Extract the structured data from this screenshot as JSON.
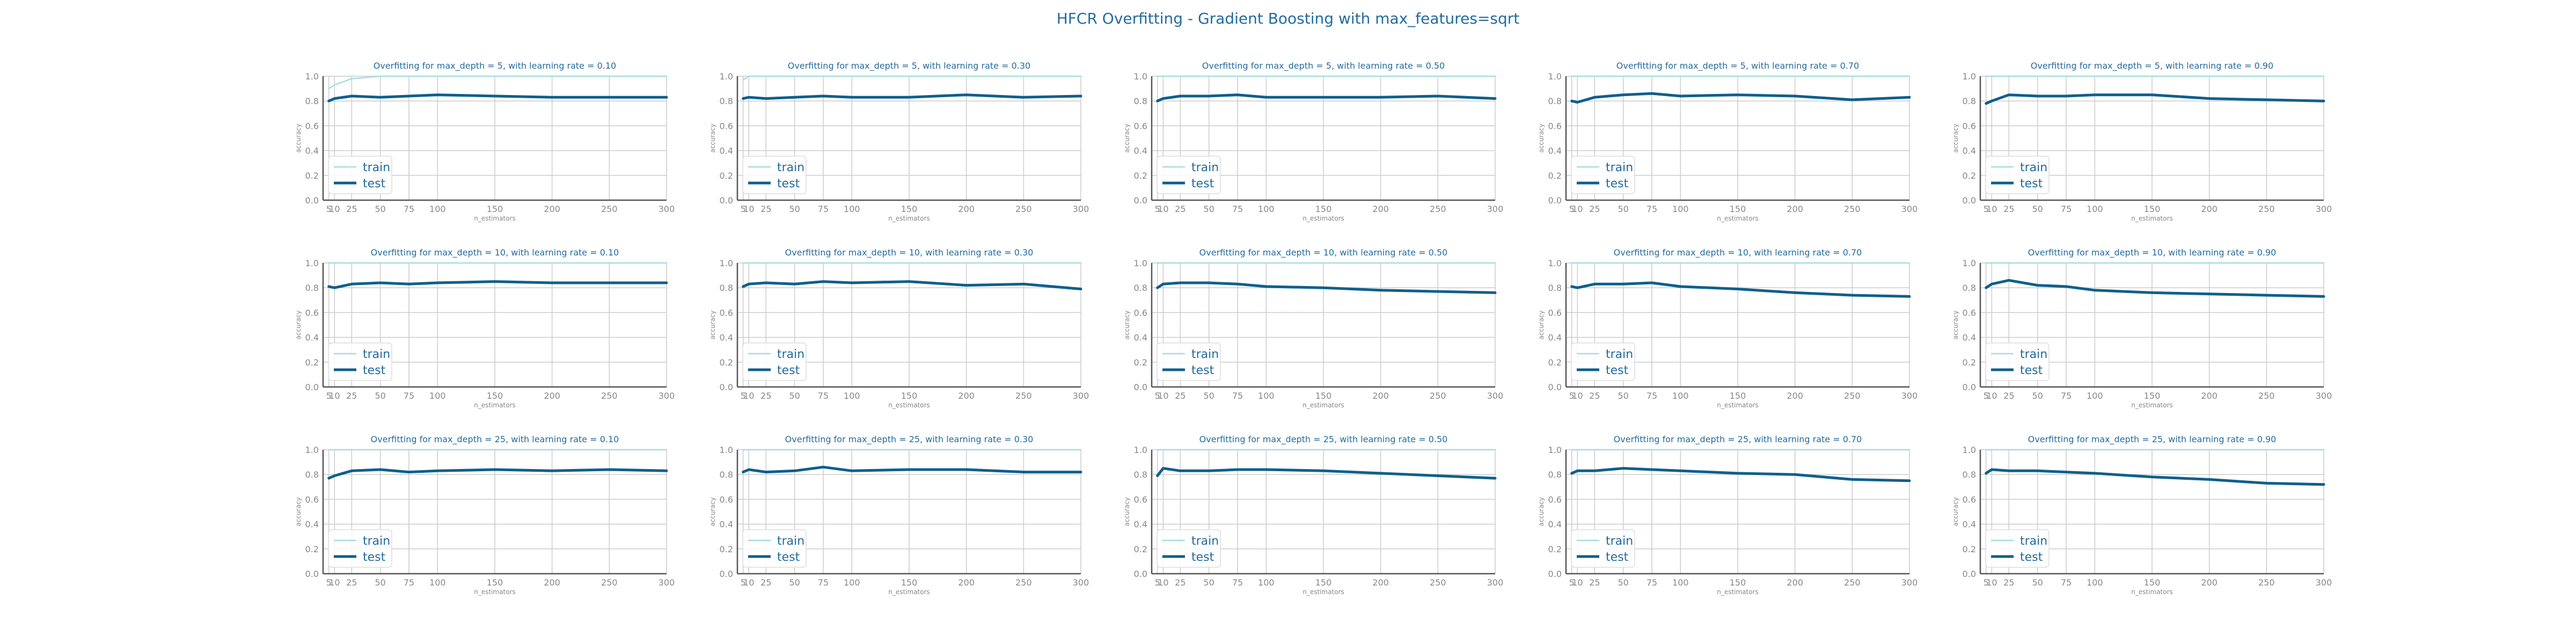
{
  "figure": {
    "title": "HFCR Overfitting - Gradient Boosting with max_features=sqrt"
  },
  "colors": {
    "train": "#a6dde0",
    "test": "#0e5f8c",
    "grid": "#cccccc",
    "axis": "#555555",
    "text": "#236b9e",
    "tick": "#888888"
  },
  "chart_data": [
    {
      "type": "line",
      "title": "Overfitting for max_depth = 5, with learning rate = 0.10",
      "xlabel": "n_estimators",
      "ylabel": "accuracy",
      "x": [
        5,
        10,
        25,
        50,
        75,
        100,
        150,
        200,
        250,
        300
      ],
      "xticks": [
        5,
        10,
        25,
        50,
        75,
        100,
        150,
        200,
        250,
        300
      ],
      "yticks": [
        0.0,
        0.2,
        0.4,
        0.6,
        0.8,
        1.0
      ],
      "xlim": [
        0,
        300
      ],
      "ylim": [
        0,
        1
      ],
      "legend": "lower-left",
      "series": [
        {
          "name": "train",
          "values": [
            0.9,
            0.93,
            0.98,
            1.0,
            1.0,
            1.0,
            1.0,
            1.0,
            1.0,
            1.0
          ]
        },
        {
          "name": "test",
          "values": [
            0.8,
            0.82,
            0.84,
            0.83,
            0.84,
            0.85,
            0.84,
            0.83,
            0.83,
            0.83
          ]
        }
      ]
    },
    {
      "type": "line",
      "title": "Overfitting for max_depth = 5, with learning rate = 0.30",
      "xlabel": "n_estimators",
      "ylabel": "accuracy",
      "x": [
        5,
        10,
        25,
        50,
        75,
        100,
        150,
        200,
        250,
        300
      ],
      "xticks": [
        5,
        10,
        25,
        50,
        75,
        100,
        150,
        200,
        250,
        300
      ],
      "yticks": [
        0.0,
        0.2,
        0.4,
        0.6,
        0.8,
        1.0
      ],
      "xlim": [
        0,
        300
      ],
      "ylim": [
        0,
        1
      ],
      "legend": "lower-left",
      "series": [
        {
          "name": "train",
          "values": [
            0.97,
            1.0,
            1.0,
            1.0,
            1.0,
            1.0,
            1.0,
            1.0,
            1.0,
            1.0
          ]
        },
        {
          "name": "test",
          "values": [
            0.82,
            0.83,
            0.82,
            0.83,
            0.84,
            0.83,
            0.83,
            0.85,
            0.83,
            0.84
          ]
        }
      ]
    },
    {
      "type": "line",
      "title": "Overfitting for max_depth = 5, with learning rate = 0.50",
      "xlabel": "n_estimators",
      "ylabel": "accuracy",
      "x": [
        5,
        10,
        25,
        50,
        75,
        100,
        150,
        200,
        250,
        300
      ],
      "xticks": [
        5,
        10,
        25,
        50,
        75,
        100,
        150,
        200,
        250,
        300
      ],
      "yticks": [
        0.0,
        0.2,
        0.4,
        0.6,
        0.8,
        1.0
      ],
      "xlim": [
        0,
        300
      ],
      "ylim": [
        0,
        1
      ],
      "legend": "lower-left",
      "series": [
        {
          "name": "train",
          "values": [
            1.0,
            1.0,
            1.0,
            1.0,
            1.0,
            1.0,
            1.0,
            1.0,
            1.0,
            1.0
          ]
        },
        {
          "name": "test",
          "values": [
            0.8,
            0.82,
            0.84,
            0.84,
            0.85,
            0.83,
            0.83,
            0.83,
            0.84,
            0.82
          ]
        }
      ]
    },
    {
      "type": "line",
      "title": "Overfitting for max_depth = 5, with learning rate = 0.70",
      "xlabel": "n_estimators",
      "ylabel": "accuracy",
      "x": [
        5,
        10,
        25,
        50,
        75,
        100,
        150,
        200,
        250,
        300
      ],
      "xticks": [
        5,
        10,
        25,
        50,
        75,
        100,
        150,
        200,
        250,
        300
      ],
      "yticks": [
        0.0,
        0.2,
        0.4,
        0.6,
        0.8,
        1.0
      ],
      "xlim": [
        0,
        300
      ],
      "ylim": [
        0,
        1
      ],
      "legend": "lower-left",
      "series": [
        {
          "name": "train",
          "values": [
            1.0,
            1.0,
            1.0,
            1.0,
            1.0,
            1.0,
            1.0,
            1.0,
            1.0,
            1.0
          ]
        },
        {
          "name": "test",
          "values": [
            0.8,
            0.79,
            0.83,
            0.85,
            0.86,
            0.84,
            0.85,
            0.84,
            0.81,
            0.83
          ]
        }
      ]
    },
    {
      "type": "line",
      "title": "Overfitting for max_depth = 5, with learning rate = 0.90",
      "xlabel": "n_estimators",
      "ylabel": "accuracy",
      "x": [
        5,
        10,
        25,
        50,
        75,
        100,
        150,
        200,
        250,
        300
      ],
      "xticks": [
        5,
        10,
        25,
        50,
        75,
        100,
        150,
        200,
        250,
        300
      ],
      "yticks": [
        0.0,
        0.2,
        0.4,
        0.6,
        0.8,
        1.0
      ],
      "xlim": [
        0,
        300
      ],
      "ylim": [
        0,
        1
      ],
      "legend": "lower-left",
      "series": [
        {
          "name": "train",
          "values": [
            1.0,
            1.0,
            1.0,
            1.0,
            1.0,
            1.0,
            1.0,
            1.0,
            1.0,
            1.0
          ]
        },
        {
          "name": "test",
          "values": [
            0.78,
            0.8,
            0.85,
            0.84,
            0.84,
            0.85,
            0.85,
            0.82,
            0.81,
            0.8
          ]
        }
      ]
    },
    {
      "type": "line",
      "title": "Overfitting for max_depth = 10, with learning rate = 0.10",
      "xlabel": "n_estimators",
      "ylabel": "accuracy",
      "x": [
        5,
        10,
        25,
        50,
        75,
        100,
        150,
        200,
        250,
        300
      ],
      "xticks": [
        5,
        10,
        25,
        50,
        75,
        100,
        150,
        200,
        250,
        300
      ],
      "yticks": [
        0.0,
        0.2,
        0.4,
        0.6,
        0.8,
        1.0
      ],
      "xlim": [
        0,
        300
      ],
      "ylim": [
        0,
        1
      ],
      "legend": "lower-left",
      "series": [
        {
          "name": "train",
          "values": [
            1.0,
            1.0,
            1.0,
            1.0,
            1.0,
            1.0,
            1.0,
            1.0,
            1.0,
            1.0
          ]
        },
        {
          "name": "test",
          "values": [
            0.81,
            0.8,
            0.83,
            0.84,
            0.83,
            0.84,
            0.85,
            0.84,
            0.84,
            0.84
          ]
        }
      ]
    },
    {
      "type": "line",
      "title": "Overfitting for max_depth = 10, with learning rate = 0.30",
      "xlabel": "n_estimators",
      "ylabel": "accuracy",
      "x": [
        5,
        10,
        25,
        50,
        75,
        100,
        150,
        200,
        250,
        300
      ],
      "xticks": [
        5,
        10,
        25,
        50,
        75,
        100,
        150,
        200,
        250,
        300
      ],
      "yticks": [
        0.0,
        0.2,
        0.4,
        0.6,
        0.8,
        1.0
      ],
      "xlim": [
        0,
        300
      ],
      "ylim": [
        0,
        1
      ],
      "legend": "lower-left",
      "series": [
        {
          "name": "train",
          "values": [
            1.0,
            1.0,
            1.0,
            1.0,
            1.0,
            1.0,
            1.0,
            1.0,
            1.0,
            1.0
          ]
        },
        {
          "name": "test",
          "values": [
            0.81,
            0.83,
            0.84,
            0.83,
            0.85,
            0.84,
            0.85,
            0.82,
            0.83,
            0.79
          ]
        }
      ]
    },
    {
      "type": "line",
      "title": "Overfitting for max_depth = 10, with learning rate = 0.50",
      "xlabel": "n_estimators",
      "ylabel": "accuracy",
      "x": [
        5,
        10,
        25,
        50,
        75,
        100,
        150,
        200,
        250,
        300
      ],
      "xticks": [
        5,
        10,
        25,
        50,
        75,
        100,
        150,
        200,
        250,
        300
      ],
      "yticks": [
        0.0,
        0.2,
        0.4,
        0.6,
        0.8,
        1.0
      ],
      "xlim": [
        0,
        300
      ],
      "ylim": [
        0,
        1
      ],
      "legend": "lower-left",
      "series": [
        {
          "name": "train",
          "values": [
            1.0,
            1.0,
            1.0,
            1.0,
            1.0,
            1.0,
            1.0,
            1.0,
            1.0,
            1.0
          ]
        },
        {
          "name": "test",
          "values": [
            0.8,
            0.83,
            0.84,
            0.84,
            0.83,
            0.81,
            0.8,
            0.78,
            0.77,
            0.76
          ]
        }
      ]
    },
    {
      "type": "line",
      "title": "Overfitting for max_depth = 10, with learning rate = 0.70",
      "xlabel": "n_estimators",
      "ylabel": "accuracy",
      "x": [
        5,
        10,
        25,
        50,
        75,
        100,
        150,
        200,
        250,
        300
      ],
      "xticks": [
        5,
        10,
        25,
        50,
        75,
        100,
        150,
        200,
        250,
        300
      ],
      "yticks": [
        0.0,
        0.2,
        0.4,
        0.6,
        0.8,
        1.0
      ],
      "xlim": [
        0,
        300
      ],
      "ylim": [
        0,
        1
      ],
      "legend": "lower-left",
      "series": [
        {
          "name": "train",
          "values": [
            1.0,
            1.0,
            1.0,
            1.0,
            1.0,
            1.0,
            1.0,
            1.0,
            1.0,
            1.0
          ]
        },
        {
          "name": "test",
          "values": [
            0.81,
            0.8,
            0.83,
            0.83,
            0.84,
            0.81,
            0.79,
            0.76,
            0.74,
            0.73
          ]
        }
      ]
    },
    {
      "type": "line",
      "title": "Overfitting for max_depth = 10, with learning rate = 0.90",
      "xlabel": "n_estimators",
      "ylabel": "accuracy",
      "x": [
        5,
        10,
        25,
        50,
        75,
        100,
        150,
        200,
        250,
        300
      ],
      "xticks": [
        5,
        10,
        25,
        50,
        75,
        100,
        150,
        200,
        250,
        300
      ],
      "yticks": [
        0.0,
        0.2,
        0.4,
        0.6,
        0.8,
        1.0
      ],
      "xlim": [
        0,
        300
      ],
      "ylim": [
        0,
        1
      ],
      "legend": "lower-left",
      "series": [
        {
          "name": "train",
          "values": [
            1.0,
            1.0,
            1.0,
            1.0,
            1.0,
            1.0,
            1.0,
            1.0,
            1.0,
            1.0
          ]
        },
        {
          "name": "test",
          "values": [
            0.8,
            0.83,
            0.86,
            0.82,
            0.81,
            0.78,
            0.76,
            0.75,
            0.74,
            0.73
          ]
        }
      ]
    },
    {
      "type": "line",
      "title": "Overfitting for max_depth = 25, with learning rate = 0.10",
      "xlabel": "n_estimators",
      "ylabel": "accuracy",
      "x": [
        5,
        10,
        25,
        50,
        75,
        100,
        150,
        200,
        250,
        300
      ],
      "xticks": [
        5,
        10,
        25,
        50,
        75,
        100,
        150,
        200,
        250,
        300
      ],
      "yticks": [
        0.0,
        0.2,
        0.4,
        0.6,
        0.8,
        1.0
      ],
      "xlim": [
        0,
        300
      ],
      "ylim": [
        0,
        1
      ],
      "legend": "lower-left",
      "series": [
        {
          "name": "train",
          "values": [
            1.0,
            1.0,
            1.0,
            1.0,
            1.0,
            1.0,
            1.0,
            1.0,
            1.0,
            1.0
          ]
        },
        {
          "name": "test",
          "values": [
            0.77,
            0.79,
            0.83,
            0.84,
            0.82,
            0.83,
            0.84,
            0.83,
            0.84,
            0.83
          ]
        }
      ]
    },
    {
      "type": "line",
      "title": "Overfitting for max_depth = 25, with learning rate = 0.30",
      "xlabel": "n_estimators",
      "ylabel": "accuracy",
      "x": [
        5,
        10,
        25,
        50,
        75,
        100,
        150,
        200,
        250,
        300
      ],
      "xticks": [
        5,
        10,
        25,
        50,
        75,
        100,
        150,
        200,
        250,
        300
      ],
      "yticks": [
        0.0,
        0.2,
        0.4,
        0.6,
        0.8,
        1.0
      ],
      "xlim": [
        0,
        300
      ],
      "ylim": [
        0,
        1
      ],
      "legend": "lower-left",
      "series": [
        {
          "name": "train",
          "values": [
            1.0,
            1.0,
            1.0,
            1.0,
            1.0,
            1.0,
            1.0,
            1.0,
            1.0,
            1.0
          ]
        },
        {
          "name": "test",
          "values": [
            0.82,
            0.84,
            0.82,
            0.83,
            0.86,
            0.83,
            0.84,
            0.84,
            0.82,
            0.82
          ]
        }
      ]
    },
    {
      "type": "line",
      "title": "Overfitting for max_depth = 25, with learning rate = 0.50",
      "xlabel": "n_estimators",
      "ylabel": "accuracy",
      "x": [
        5,
        10,
        25,
        50,
        75,
        100,
        150,
        200,
        250,
        300
      ],
      "xticks": [
        5,
        10,
        25,
        50,
        75,
        100,
        150,
        200,
        250,
        300
      ],
      "yticks": [
        0.0,
        0.2,
        0.4,
        0.6,
        0.8,
        1.0
      ],
      "xlim": [
        0,
        300
      ],
      "ylim": [
        0,
        1
      ],
      "legend": "lower-left",
      "series": [
        {
          "name": "train",
          "values": [
            1.0,
            1.0,
            1.0,
            1.0,
            1.0,
            1.0,
            1.0,
            1.0,
            1.0,
            1.0
          ]
        },
        {
          "name": "test",
          "values": [
            0.79,
            0.85,
            0.83,
            0.83,
            0.84,
            0.84,
            0.83,
            0.81,
            0.79,
            0.77
          ]
        }
      ]
    },
    {
      "type": "line",
      "title": "Overfitting for max_depth = 25, with learning rate = 0.70",
      "xlabel": "n_estimators",
      "ylabel": "accuracy",
      "x": [
        5,
        10,
        25,
        50,
        75,
        100,
        150,
        200,
        250,
        300
      ],
      "xticks": [
        5,
        10,
        25,
        50,
        75,
        100,
        150,
        200,
        250,
        300
      ],
      "yticks": [
        0.0,
        0.2,
        0.4,
        0.6,
        0.8,
        1.0
      ],
      "xlim": [
        0,
        300
      ],
      "ylim": [
        0,
        1
      ],
      "legend": "lower-left",
      "series": [
        {
          "name": "train",
          "values": [
            1.0,
            1.0,
            1.0,
            1.0,
            1.0,
            1.0,
            1.0,
            1.0,
            1.0,
            1.0
          ]
        },
        {
          "name": "test",
          "values": [
            0.81,
            0.83,
            0.83,
            0.85,
            0.84,
            0.83,
            0.81,
            0.8,
            0.76,
            0.75
          ]
        }
      ]
    },
    {
      "type": "line",
      "title": "Overfitting for max_depth = 25, with learning rate = 0.90",
      "xlabel": "n_estimators",
      "ylabel": "accuracy",
      "x": [
        5,
        10,
        25,
        50,
        75,
        100,
        150,
        200,
        250,
        300
      ],
      "xticks": [
        5,
        10,
        25,
        50,
        75,
        100,
        150,
        200,
        250,
        300
      ],
      "yticks": [
        0.0,
        0.2,
        0.4,
        0.6,
        0.8,
        1.0
      ],
      "xlim": [
        0,
        300
      ],
      "ylim": [
        0,
        1
      ],
      "legend": "lower-left",
      "series": [
        {
          "name": "train",
          "values": [
            1.0,
            1.0,
            1.0,
            1.0,
            1.0,
            1.0,
            1.0,
            1.0,
            1.0,
            1.0
          ]
        },
        {
          "name": "test",
          "values": [
            0.81,
            0.84,
            0.83,
            0.83,
            0.82,
            0.81,
            0.78,
            0.76,
            0.73,
            0.72
          ]
        }
      ]
    }
  ]
}
